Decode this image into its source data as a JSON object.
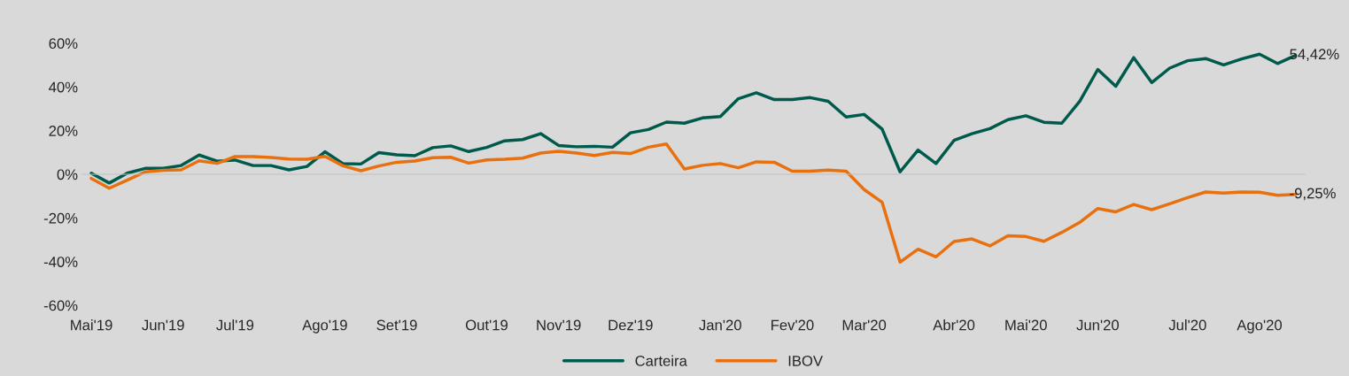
{
  "chart_data": {
    "type": "line",
    "categories": [
      "Mai'19",
      null,
      null,
      null,
      "Jun'19",
      null,
      null,
      null,
      "Jul'19",
      null,
      null,
      null,
      null,
      "Ago'19",
      null,
      null,
      null,
      "Set'19",
      null,
      null,
      null,
      null,
      "Out'19",
      null,
      null,
      null,
      "Nov'19",
      null,
      null,
      null,
      "Dez'19",
      null,
      null,
      null,
      null,
      "Jan'20",
      null,
      null,
      null,
      "Fev'20",
      null,
      null,
      null,
      "Mar'20",
      null,
      null,
      null,
      null,
      "Abr'20",
      null,
      null,
      null,
      "Mai'20",
      null,
      null,
      null,
      "Jun'20",
      null,
      null,
      null,
      null,
      "Jul'20",
      null,
      null,
      null,
      "Ago'20",
      null,
      null
    ],
    "series": [
      {
        "name": "Carteira",
        "color": "#005a4b",
        "values": [
          0.5,
          -4,
          0.5,
          2.7,
          2.7,
          4,
          8.8,
          6,
          6.5,
          4,
          4,
          2,
          3.6,
          10.3,
          4.9,
          4.7,
          9.9,
          8.9,
          8.5,
          12.2,
          13,
          10.4,
          12.3,
          15.3,
          15.9,
          18.6,
          13.2,
          12.6,
          12.8,
          12.4,
          19,
          20.5,
          23.9,
          23.4,
          25.8,
          26.4,
          34.6,
          37.3,
          34.2,
          34.2,
          35.1,
          33.4,
          26.2,
          27.4,
          20.7,
          1.1,
          11.1,
          4.9,
          15.5,
          18.6,
          20.9,
          25,
          26.8,
          23.8,
          23.4,
          33.5,
          48,
          40.3,
          53.4,
          42,
          48.6,
          52,
          53,
          50.1,
          52.8,
          55,
          50.7,
          54.42
        ],
        "value_labels": [
          null,
          null,
          null,
          null,
          null,
          null,
          null,
          null,
          null,
          null,
          null,
          null,
          null,
          null,
          null,
          null,
          null,
          null,
          null,
          null,
          null,
          null,
          null,
          null,
          null,
          null,
          null,
          null,
          null,
          null,
          null,
          null,
          null,
          null,
          null,
          null,
          null,
          null,
          null,
          null,
          null,
          null,
          null,
          null,
          null,
          null,
          null,
          null,
          null,
          null,
          null,
          null,
          null,
          null,
          null,
          null,
          null,
          null,
          null,
          null,
          null,
          null,
          null,
          null,
          null,
          null,
          null,
          "54,42%"
        ]
      },
      {
        "name": "IBOV",
        "color": "#e8700e",
        "values": [
          -1.9,
          -6.4,
          -2.7,
          1.1,
          1.8,
          2,
          6.2,
          5,
          8.1,
          8.1,
          7.7,
          7,
          6.9,
          8.2,
          3.9,
          1.6,
          3.8,
          5.5,
          6.1,
          7.6,
          7.8,
          5.1,
          6.6,
          6.9,
          7.4,
          9.7,
          10.5,
          9.7,
          8.6,
          10,
          9.5,
          12.4,
          13.9,
          2.4,
          4.1,
          4.9,
          3,
          5.7,
          5.5,
          1.4,
          1.4,
          1.9,
          1.4,
          -7,
          -12.8,
          -40.2,
          -34.3,
          -37.8,
          -30.8,
          -29.6,
          -32.8,
          -28.2,
          -28.5,
          -30.7,
          -26.6,
          -22,
          -15.7,
          -17.2,
          -13.8,
          -16.2,
          -13.5,
          -10.7,
          -8.1,
          -8.6,
          -8.1,
          -8.2,
          -9.6,
          -9.25
        ],
        "value_labels": [
          null,
          null,
          null,
          null,
          null,
          null,
          null,
          null,
          null,
          null,
          null,
          null,
          null,
          null,
          null,
          null,
          null,
          null,
          null,
          null,
          null,
          null,
          null,
          null,
          null,
          null,
          null,
          null,
          null,
          null,
          null,
          null,
          null,
          null,
          null,
          null,
          null,
          null,
          null,
          null,
          null,
          null,
          null,
          null,
          null,
          null,
          null,
          null,
          null,
          null,
          null,
          null,
          null,
          null,
          null,
          null,
          null,
          null,
          null,
          null,
          null,
          null,
          null,
          null,
          null,
          null,
          null,
          "-9,25%"
        ]
      }
    ],
    "ylim": [
      -60,
      60
    ],
    "yticks": [
      {
        "value": -60,
        "label": "-60%"
      },
      {
        "value": -40,
        "label": "-40%"
      },
      {
        "value": -20,
        "label": "-20%"
      },
      {
        "value": 0,
        "label": "0%"
      },
      {
        "value": 20,
        "label": "20%"
      },
      {
        "value": 40,
        "label": "40%"
      },
      {
        "value": 60,
        "label": "60%"
      }
    ],
    "legend": "bottom",
    "marker": "none",
    "line_style": "solid"
  }
}
